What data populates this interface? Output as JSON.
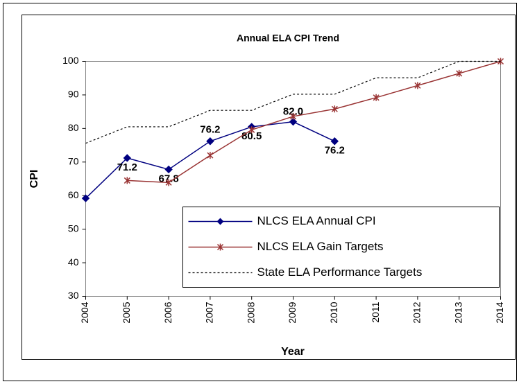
{
  "chart_data": {
    "type": "line",
    "title": "Annual ELA CPI Trend",
    "x_label": "Year",
    "y_label": "CPI",
    "categories": [
      "2004",
      "2005",
      "2006",
      "2007",
      "2008",
      "2009",
      "2010",
      "2011",
      "2012",
      "2013",
      "2014"
    ],
    "ylim": [
      30,
      100
    ],
    "yticks": [
      30,
      40,
      50,
      60,
      70,
      80,
      90,
      100
    ],
    "grid": false,
    "legend": "lower right",
    "series": [
      {
        "name": "NLCS ELA Annual CPI",
        "color": "#000080",
        "marker": "diamond",
        "values": [
          59.2,
          71.2,
          67.8,
          76.2,
          80.5,
          82.0,
          76.2,
          null,
          null,
          null,
          null
        ],
        "value_labels": [
          null,
          "71.2",
          "67.8",
          "76.2",
          "80.5",
          "82.0",
          "76.2",
          null,
          null,
          null,
          null
        ]
      },
      {
        "name": "NLCS ELA Gain Targets",
        "color": "#993333",
        "marker": "star",
        "values": [
          null,
          64.5,
          63.9,
          72.0,
          79.6,
          83.6,
          85.8,
          89.2,
          92.8,
          96.4,
          100
        ]
      },
      {
        "name": "State ELA Performance Targets",
        "color": "#000000",
        "marker": "none",
        "dash": true,
        "values": [
          75.6,
          80.5,
          80.5,
          85.4,
          85.4,
          90.2,
          90.2,
          95.1,
          95.1,
          100,
          100
        ]
      }
    ]
  }
}
